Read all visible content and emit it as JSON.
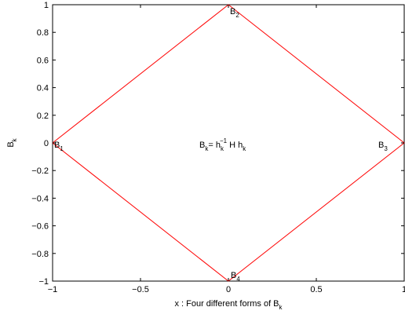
{
  "chart_data": {
    "type": "line",
    "title": "",
    "xlabel": {
      "main": "x : Four different forms of B",
      "sub": "k"
    },
    "ylabel": {
      "main": "B",
      "sub": "k"
    },
    "xlim": [
      -1,
      1
    ],
    "ylim": [
      -1,
      1
    ],
    "grid": false,
    "xticks": [
      -1,
      -0.5,
      0,
      0.5,
      1
    ],
    "xtick_labels": [
      "−1",
      "−0.5",
      "0",
      "0.5",
      "1"
    ],
    "yticks": [
      -1,
      -0.8,
      -0.6,
      -0.4,
      -0.2,
      0,
      0.2,
      0.4,
      0.6,
      0.8,
      1
    ],
    "ytick_labels": [
      "−1",
      "−0.8",
      "−0.6",
      "−0.4",
      "−0.2",
      "0",
      "0.2",
      "0.4",
      "0.6",
      "0.8",
      "1"
    ],
    "series": [
      {
        "color": "#ff0000",
        "x": [
          -1,
          0,
          1,
          0,
          -1
        ],
        "y": [
          0,
          1,
          0,
          -1,
          0
        ]
      }
    ],
    "point_labels": [
      {
        "main": "B",
        "sub": "1",
        "x": -1,
        "y": 0
      },
      {
        "main": "B",
        "sub": "2",
        "x": 0,
        "y": 1
      },
      {
        "main": "B",
        "sub": "3",
        "x": 1,
        "y": 0
      },
      {
        "main": "B",
        "sub": "4",
        "x": 0,
        "y": -1
      }
    ],
    "equation": {
      "lhs": "B",
      "lhs_sub": "k",
      "eq": "= h",
      "h_sub": "k",
      "h_sup": "−1",
      "mid": " H h",
      "end_sub": "k",
      "x": 0,
      "y": 0
    }
  }
}
